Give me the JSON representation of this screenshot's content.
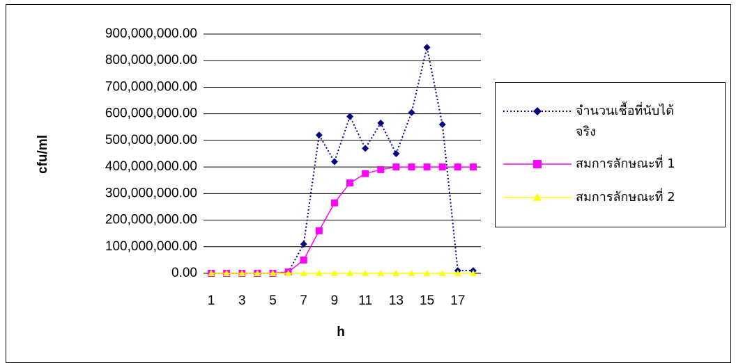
{
  "chart_data": {
    "type": "line",
    "y_label": "cfu/ml",
    "x_label": "h",
    "categories": [
      "1",
      null,
      "3",
      null,
      "5",
      null,
      "7",
      null,
      "9",
      null,
      "11",
      null,
      "13",
      null,
      "15",
      null,
      "17",
      null
    ],
    "series": [
      {
        "name": "จำนวนเชื้อที่นับได้จริง",
        "color": "#000080",
        "marker": "diamond",
        "dash": true,
        "values": [
          0,
          0,
          0,
          0,
          0,
          5000000,
          110000000,
          520000000,
          420000000,
          590000000,
          470000000,
          565000000,
          450000000,
          605000000,
          850000000,
          560000000,
          10000000,
          10000000
        ]
      },
      {
        "name": "สมการลักษณะที่ 1",
        "color": "#ff00ff",
        "marker": "square",
        "dash": false,
        "values": [
          0,
          0,
          0,
          0,
          0,
          5000000,
          50000000,
          160000000,
          265000000,
          340000000,
          375000000,
          390000000,
          400000000,
          400000000,
          400000000,
          400000000,
          400000000,
          400000000
        ]
      },
      {
        "name": "สมการลักษณะที่ 2",
        "color": "#ffff00",
        "marker": "triangle",
        "dash": false,
        "values": [
          0,
          0,
          0,
          0,
          0,
          0,
          0,
          0,
          0,
          0,
          0,
          0,
          0,
          0,
          0,
          0,
          0,
          0
        ]
      }
    ],
    "ylim": [
      0,
      900000000
    ],
    "yticks": [
      {
        "value": 0,
        "label": "0.00"
      },
      {
        "value": 100000000,
        "label": "100,000,000.00"
      },
      {
        "value": 200000000,
        "label": "200,000,000.00"
      },
      {
        "value": 300000000,
        "label": "300,000,000.00"
      },
      {
        "value": 400000000,
        "label": "400,000,000.00"
      },
      {
        "value": 500000000,
        "label": "500,000,000.00"
      },
      {
        "value": 600000000,
        "label": "600,000,000.00"
      },
      {
        "value": 700000000,
        "label": "700,000,000.00"
      },
      {
        "value": 800000000,
        "label": "800,000,000.00"
      },
      {
        "value": 900000000,
        "label": "900,000,000.00"
      }
    ],
    "grid": true,
    "legend": "right"
  }
}
